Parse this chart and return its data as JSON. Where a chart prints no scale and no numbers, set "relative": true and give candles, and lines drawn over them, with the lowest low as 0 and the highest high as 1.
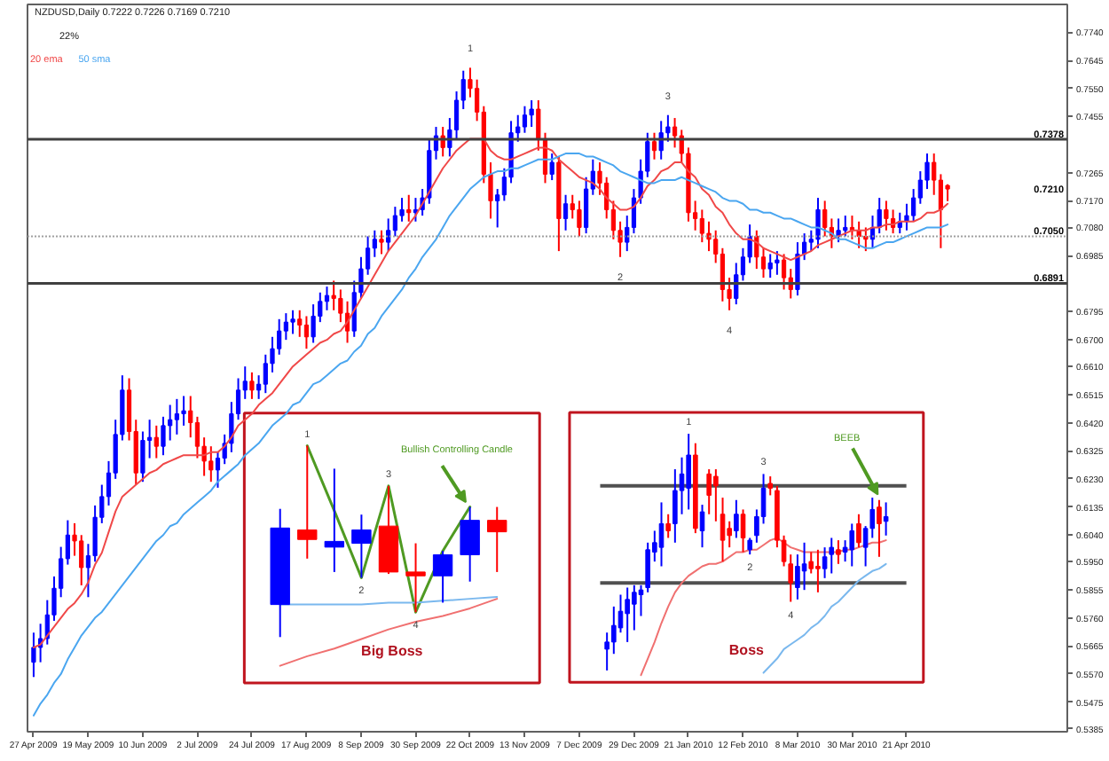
{
  "chart_data": [
    {
      "type": "candlestick",
      "title": "NZDUSD,Daily 0.7222 0.7226 0.7169 0.7210",
      "categories": [
        "27 Apr 2009",
        null,
        null,
        null,
        null,
        null,
        null,
        null,
        "19 May 2009",
        null,
        null,
        null,
        null,
        null,
        null,
        null,
        "10 Jun 2009",
        null,
        null,
        null,
        null,
        null,
        null,
        null,
        "2 Jul 2009",
        null,
        null,
        null,
        null,
        null,
        null,
        null,
        "24 Jul 2009",
        null,
        null,
        null,
        null,
        null,
        null,
        null,
        "17 Aug 2009",
        null,
        null,
        null,
        null,
        null,
        null,
        null,
        "8 Sep 2009",
        null,
        null,
        null,
        null,
        null,
        null,
        null,
        "30 Sep 2009",
        null,
        null,
        null,
        null,
        null,
        null,
        null,
        "22 Oct 2009",
        null,
        null,
        null,
        null,
        null,
        null,
        null,
        "13 Nov 2009",
        null,
        null,
        null,
        null,
        null,
        null,
        null,
        "7 Dec 2009",
        null,
        null,
        null,
        null,
        null,
        null,
        null,
        "29 Dec 2009",
        null,
        null,
        null,
        null,
        null,
        null,
        null,
        "21 Jan 2010",
        null,
        null,
        null,
        null,
        null,
        null,
        null,
        "12 Feb 2010",
        null,
        null,
        null,
        null,
        null,
        null,
        null,
        "8 Mar 2010",
        null,
        null,
        null,
        null,
        null,
        null,
        null,
        "30 Mar 2010",
        null,
        null,
        null,
        null,
        null,
        null,
        null,
        "21 Apr 2010",
        null,
        null,
        null,
        null,
        null,
        null
      ],
      "ohlc": [
        [
          0.561,
          0.571,
          0.556,
          0.566
        ],
        [
          0.566,
          0.574,
          0.561,
          0.569
        ],
        [
          0.569,
          0.582,
          0.567,
          0.577
        ],
        [
          0.577,
          0.59,
          0.575,
          0.586
        ],
        [
          0.586,
          0.6,
          0.583,
          0.596
        ],
        [
          0.596,
          0.609,
          0.594,
          0.604
        ],
        [
          0.604,
          0.608,
          0.597,
          0.602
        ],
        [
          0.602,
          0.604,
          0.587,
          0.593
        ],
        [
          0.593,
          0.601,
          0.583,
          0.597
        ],
        [
          0.597,
          0.614,
          0.595,
          0.61
        ],
        [
          0.61,
          0.621,
          0.608,
          0.617
        ],
        [
          0.617,
          0.629,
          0.614,
          0.625
        ],
        [
          0.625,
          0.643,
          0.623,
          0.638
        ],
        [
          0.638,
          0.658,
          0.636,
          0.653
        ],
        [
          0.653,
          0.657,
          0.636,
          0.639
        ],
        [
          0.639,
          0.643,
          0.621,
          0.625
        ],
        [
          0.625,
          0.639,
          0.622,
          0.636
        ],
        [
          0.636,
          0.643,
          0.63,
          0.637
        ],
        [
          0.637,
          0.641,
          0.63,
          0.634
        ],
        [
          0.634,
          0.644,
          0.631,
          0.641
        ],
        [
          0.641,
          0.648,
          0.636,
          0.643
        ],
        [
          0.643,
          0.65,
          0.638,
          0.645
        ],
        [
          0.645,
          0.651,
          0.641,
          0.646
        ],
        [
          0.646,
          0.651,
          0.637,
          0.642
        ],
        [
          0.642,
          0.644,
          0.63,
          0.634
        ],
        [
          0.634,
          0.637,
          0.624,
          0.629
        ],
        [
          0.629,
          0.634,
          0.622,
          0.626
        ],
        [
          0.626,
          0.632,
          0.62,
          0.63
        ],
        [
          0.63,
          0.638,
          0.628,
          0.635
        ],
        [
          0.635,
          0.649,
          0.632,
          0.645
        ],
        [
          0.645,
          0.657,
          0.643,
          0.653
        ],
        [
          0.653,
          0.661,
          0.65,
          0.656
        ],
        [
          0.656,
          0.659,
          0.65,
          0.653
        ],
        [
          0.653,
          0.658,
          0.65,
          0.655
        ],
        [
          0.655,
          0.665,
          0.652,
          0.662
        ],
        [
          0.662,
          0.671,
          0.659,
          0.667
        ],
        [
          0.667,
          0.677,
          0.665,
          0.673
        ],
        [
          0.673,
          0.679,
          0.67,
          0.676
        ],
        [
          0.676,
          0.68,
          0.672,
          0.677
        ],
        [
          0.677,
          0.68,
          0.671,
          0.675
        ],
        [
          0.675,
          0.678,
          0.667,
          0.671
        ],
        [
          0.671,
          0.682,
          0.669,
          0.678
        ],
        [
          0.678,
          0.686,
          0.676,
          0.683
        ],
        [
          0.683,
          0.688,
          0.68,
          0.685
        ],
        [
          0.685,
          0.69,
          0.68,
          0.684
        ],
        [
          0.684,
          0.687,
          0.676,
          0.679
        ],
        [
          0.679,
          0.683,
          0.669,
          0.673
        ],
        [
          0.673,
          0.69,
          0.671,
          0.686
        ],
        [
          0.686,
          0.698,
          0.684,
          0.694
        ],
        [
          0.694,
          0.705,
          0.692,
          0.701
        ],
        [
          0.701,
          0.707,
          0.698,
          0.704
        ],
        [
          0.704,
          0.707,
          0.699,
          0.703
        ],
        [
          0.703,
          0.711,
          0.7,
          0.707
        ],
        [
          0.707,
          0.715,
          0.705,
          0.712
        ],
        [
          0.712,
          0.718,
          0.71,
          0.714
        ],
        [
          0.714,
          0.719,
          0.71,
          0.713
        ],
        [
          0.713,
          0.718,
          0.71,
          0.714
        ],
        [
          0.714,
          0.721,
          0.712,
          0.718
        ],
        [
          0.718,
          0.738,
          0.716,
          0.734
        ],
        [
          0.734,
          0.742,
          0.731,
          0.739
        ],
        [
          0.739,
          0.742,
          0.732,
          0.735
        ],
        [
          0.735,
          0.745,
          0.732,
          0.741
        ],
        [
          0.741,
          0.754,
          0.738,
          0.751
        ],
        [
          0.751,
          0.761,
          0.748,
          0.758
        ],
        [
          0.758,
          0.762,
          0.752,
          0.755
        ],
        [
          0.755,
          0.758,
          0.744,
          0.747
        ],
        [
          0.747,
          0.749,
          0.723,
          0.726
        ],
        [
          0.726,
          0.73,
          0.711,
          0.717
        ],
        [
          0.717,
          0.721,
          0.708,
          0.719
        ],
        [
          0.719,
          0.728,
          0.717,
          0.725
        ],
        [
          0.725,
          0.744,
          0.723,
          0.74
        ],
        [
          0.74,
          0.746,
          0.737,
          0.742
        ],
        [
          0.742,
          0.749,
          0.74,
          0.746
        ],
        [
          0.746,
          0.751,
          0.742,
          0.748
        ],
        [
          0.748,
          0.751,
          0.734,
          0.738
        ],
        [
          0.738,
          0.74,
          0.723,
          0.726
        ],
        [
          0.726,
          0.733,
          0.724,
          0.73
        ],
        [
          0.73,
          0.732,
          0.7,
          0.711
        ],
        [
          0.711,
          0.719,
          0.707,
          0.716
        ],
        [
          0.716,
          0.719,
          0.711,
          0.714
        ],
        [
          0.714,
          0.717,
          0.705,
          0.708
        ],
        [
          0.708,
          0.725,
          0.706,
          0.721
        ],
        [
          0.721,
          0.731,
          0.719,
          0.727
        ],
        [
          0.727,
          0.73,
          0.719,
          0.723
        ],
        [
          0.723,
          0.725,
          0.711,
          0.714
        ],
        [
          0.714,
          0.717,
          0.704,
          0.707
        ],
        [
          0.707,
          0.71,
          0.698,
          0.703
        ],
        [
          0.703,
          0.712,
          0.7,
          0.708
        ],
        [
          0.708,
          0.721,
          0.706,
          0.718
        ],
        [
          0.718,
          0.731,
          0.716,
          0.727
        ],
        [
          0.727,
          0.74,
          0.725,
          0.737
        ],
        [
          0.737,
          0.74,
          0.731,
          0.734
        ],
        [
          0.734,
          0.744,
          0.731,
          0.74
        ],
        [
          0.74,
          0.746,
          0.737,
          0.742
        ],
        [
          0.742,
          0.745,
          0.735,
          0.739
        ],
        [
          0.739,
          0.741,
          0.73,
          0.733
        ],
        [
          0.733,
          0.735,
          0.71,
          0.713
        ],
        [
          0.713,
          0.717,
          0.707,
          0.711
        ],
        [
          0.711,
          0.714,
          0.703,
          0.706
        ],
        [
          0.706,
          0.71,
          0.7,
          0.704
        ],
        [
          0.704,
          0.707,
          0.696,
          0.699
        ],
        [
          0.699,
          0.701,
          0.683,
          0.687
        ],
        [
          0.687,
          0.691,
          0.68,
          0.684
        ],
        [
          0.684,
          0.696,
          0.682,
          0.692
        ],
        [
          0.692,
          0.701,
          0.69,
          0.698
        ],
        [
          0.698,
          0.709,
          0.696,
          0.705
        ],
        [
          0.705,
          0.707,
          0.694,
          0.698
        ],
        [
          0.698,
          0.701,
          0.691,
          0.694
        ],
        [
          0.694,
          0.699,
          0.691,
          0.696
        ],
        [
          0.696,
          0.7,
          0.692,
          0.697
        ],
        [
          0.697,
          0.699,
          0.687,
          0.691
        ],
        [
          0.691,
          0.694,
          0.684,
          0.687
        ],
        [
          0.687,
          0.703,
          0.685,
          0.699
        ],
        [
          0.699,
          0.706,
          0.697,
          0.703
        ],
        [
          0.703,
          0.707,
          0.7,
          0.704
        ],
        [
          0.704,
          0.718,
          0.701,
          0.714
        ],
        [
          0.714,
          0.717,
          0.705,
          0.708
        ],
        [
          0.708,
          0.711,
          0.701,
          0.705
        ],
        [
          0.705,
          0.711,
          0.703,
          0.707
        ],
        [
          0.707,
          0.712,
          0.705,
          0.708
        ],
        [
          0.708,
          0.712,
          0.704,
          0.707
        ],
        [
          0.707,
          0.71,
          0.701,
          0.705
        ],
        [
          0.705,
          0.708,
          0.7,
          0.704
        ],
        [
          0.704,
          0.712,
          0.701,
          0.708
        ],
        [
          0.708,
          0.718,
          0.706,
          0.714
        ],
        [
          0.714,
          0.717,
          0.707,
          0.711
        ],
        [
          0.711,
          0.714,
          0.706,
          0.708
        ],
        [
          0.708,
          0.713,
          0.706,
          0.71
        ],
        [
          0.71,
          0.716,
          0.707,
          0.712
        ],
        [
          0.712,
          0.721,
          0.71,
          0.718
        ],
        [
          0.718,
          0.727,
          0.716,
          0.724
        ],
        [
          0.724,
          0.733,
          0.721,
          0.73
        ],
        [
          0.73,
          0.733,
          0.719,
          0.724
        ],
        [
          0.724,
          0.726,
          0.701,
          0.714
        ],
        [
          0.7222,
          0.7226,
          0.7169,
          0.721
        ]
      ],
      "colors": [
        "#0000ff",
        "#0000ff",
        "#0000ff",
        "#0000ff",
        "#0000ff",
        "#0000ff",
        "#ff0000",
        "#ff0000",
        "#0000ff",
        "#0000ff",
        "#0000ff",
        "#0000ff",
        "#0000ff",
        "#0000ff",
        "#ff0000",
        "#ff0000",
        "#0000ff",
        "#0000ff",
        "#ff0000",
        "#0000ff",
        "#0000ff",
        "#0000ff",
        "#0000ff",
        "#ff0000",
        "#ff0000",
        "#ff0000",
        "#ff0000",
        "#0000ff",
        "#0000ff",
        "#0000ff",
        "#0000ff",
        "#0000ff",
        "#ff0000",
        "#0000ff",
        "#0000ff",
        "#0000ff",
        "#0000ff",
        "#0000ff",
        "#0000ff",
        "#ff0000",
        "#ff0000",
        "#0000ff",
        "#0000ff",
        "#0000ff",
        "#ff0000",
        "#ff0000",
        "#ff0000",
        "#0000ff",
        "#0000ff",
        "#0000ff",
        "#0000ff",
        "#ff0000",
        "#0000ff",
        "#0000ff",
        "#0000ff",
        "#ff0000",
        "#0000ff",
        "#0000ff",
        "#0000ff",
        "#0000ff",
        "#ff0000",
        "#0000ff",
        "#0000ff",
        "#0000ff",
        "#ff0000",
        "#ff0000",
        "#ff0000",
        "#ff0000",
        "#0000ff",
        "#0000ff",
        "#0000ff",
        "#0000ff",
        "#0000ff",
        "#0000ff",
        "#ff0000",
        "#ff0000",
        "#0000ff",
        "#ff0000",
        "#0000ff",
        "#ff0000",
        "#ff0000",
        "#0000ff",
        "#0000ff",
        "#ff0000",
        "#ff0000",
        "#ff0000",
        "#ff0000",
        "#0000ff",
        "#0000ff",
        "#0000ff",
        "#0000ff",
        "#ff0000",
        "#0000ff",
        "#0000ff",
        "#ff0000",
        "#ff0000",
        "#ff0000",
        "#ff0000",
        "#ff0000",
        "#ff0000",
        "#ff0000",
        "#ff0000",
        "#ff0000",
        "#0000ff",
        "#0000ff",
        "#0000ff",
        "#ff0000",
        "#ff0000",
        "#0000ff",
        "#0000ff",
        "#ff0000",
        "#ff0000",
        "#0000ff",
        "#0000ff",
        "#0000ff",
        "#0000ff",
        "#ff0000",
        "#ff0000",
        "#0000ff",
        "#0000ff",
        "#ff0000",
        "#ff0000",
        "#ff0000",
        "#0000ff",
        "#0000ff",
        "#ff0000",
        "#ff0000",
        "#0000ff",
        "#0000ff",
        "#0000ff",
        "#0000ff",
        "#0000ff",
        "#ff0000",
        "#ff0000",
        "#ff0000"
      ],
      "value_labels": [
        null,
        null,
        null,
        null,
        null,
        null,
        null,
        null,
        null,
        null,
        null,
        null,
        null,
        null,
        null,
        null,
        null,
        null,
        null,
        null,
        null,
        null,
        null,
        null,
        null,
        null,
        null,
        null,
        null,
        null,
        null,
        null,
        null,
        null,
        null,
        null,
        null,
        null,
        null,
        null,
        null,
        null,
        null,
        null,
        null,
        null,
        null,
        null,
        null,
        null,
        null,
        null,
        null,
        null,
        null,
        null,
        null,
        null,
        null,
        null,
        null,
        null,
        null,
        null,
        "1",
        null,
        null,
        null,
        null,
        null,
        null,
        null,
        null,
        null,
        null,
        null,
        null,
        null,
        null,
        null,
        null,
        null,
        null,
        null,
        null,
        null,
        "2",
        null,
        null,
        null,
        null,
        null,
        null,
        "3",
        null,
        null,
        null,
        null,
        null,
        null,
        null,
        null,
        "4",
        null,
        null,
        null,
        null,
        null,
        null,
        null,
        null,
        null,
        null,
        null,
        null,
        null,
        null,
        null,
        null,
        null,
        null,
        null,
        null,
        null,
        null,
        null,
        null,
        null,
        null,
        null,
        null,
        null,
        null,
        null,
        null
      ],
      "series": [
        {
          "type": "line",
          "name": "20 ema",
          "color": "#f04848",
          "values": [
            0.566,
            0.567,
            0.57,
            0.573,
            0.576,
            0.579,
            0.581,
            0.584,
            0.588,
            0.594,
            0.598,
            0.605,
            0.612,
            0.617,
            0.619,
            0.621,
            0.623,
            0.625,
            0.626,
            0.628,
            0.629,
            0.63,
            0.631,
            0.631,
            0.631,
            0.631,
            0.632,
            0.632,
            0.634,
            0.637,
            0.641,
            0.643,
            0.645,
            0.648,
            0.65,
            0.652,
            0.655,
            0.658,
            0.661,
            0.663,
            0.665,
            0.667,
            0.669,
            0.67,
            0.672,
            0.673,
            0.676,
            0.68,
            0.684,
            0.688,
            0.692,
            0.696,
            0.7,
            0.703,
            0.706,
            0.709,
            0.712,
            0.716,
            0.72,
            0.724,
            0.728,
            0.731,
            0.734,
            0.736,
            0.738,
            0.738,
            0.738,
            0.734,
            0.732,
            0.731,
            0.731,
            0.732,
            0.733,
            0.734,
            0.735,
            0.735,
            0.734,
            0.731,
            0.729,
            0.727,
            0.725,
            0.724,
            0.723,
            0.721,
            0.718,
            0.716,
            0.714,
            0.714,
            0.715,
            0.718,
            0.722,
            0.724,
            0.727,
            0.728,
            0.73,
            0.73,
            0.727,
            0.725,
            0.721,
            0.719,
            0.715,
            0.713,
            0.709,
            0.706,
            0.704,
            0.704,
            0.703,
            0.701,
            0.7,
            0.699,
            0.698,
            0.697,
            0.698,
            0.699,
            0.7,
            0.702,
            0.703,
            0.704,
            0.705,
            0.706,
            0.707,
            0.707,
            0.707,
            0.708,
            0.708,
            0.709,
            0.709,
            0.71,
            0.71,
            0.71,
            0.711,
            0.713,
            0.713,
            0.714,
            0.716
          ]
        },
        {
          "type": "line",
          "name": "50 sma",
          "color": "#4aa6f0",
          "values": [
            0.543,
            0.547,
            0.55,
            0.554,
            0.557,
            0.562,
            0.566,
            0.57,
            0.573,
            0.576,
            0.578,
            0.581,
            0.584,
            0.587,
            0.59,
            0.593,
            0.596,
            0.599,
            0.602,
            0.604,
            0.607,
            0.608,
            0.611,
            0.613,
            0.615,
            0.617,
            0.619,
            0.622,
            0.624,
            0.626,
            0.628,
            0.631,
            0.633,
            0.635,
            0.638,
            0.641,
            0.643,
            0.645,
            0.648,
            0.649,
            0.652,
            0.655,
            0.656,
            0.658,
            0.66,
            0.662,
            0.663,
            0.666,
            0.668,
            0.672,
            0.674,
            0.678,
            0.681,
            0.684,
            0.687,
            0.691,
            0.694,
            0.698,
            0.701,
            0.704,
            0.708,
            0.712,
            0.715,
            0.718,
            0.721,
            0.723,
            0.725,
            0.726,
            0.727,
            0.727,
            0.728,
            0.728,
            0.729,
            0.73,
            0.731,
            0.731,
            0.731,
            0.732,
            0.733,
            0.733,
            0.733,
            0.732,
            0.732,
            0.731,
            0.73,
            0.729,
            0.727,
            0.726,
            0.725,
            0.724,
            0.723,
            0.723,
            0.724,
            0.724,
            0.724,
            0.725,
            0.724,
            0.723,
            0.722,
            0.721,
            0.72,
            0.718,
            0.717,
            0.717,
            0.716,
            0.714,
            0.714,
            0.713,
            0.713,
            0.712,
            0.711,
            0.711,
            0.71,
            0.709,
            0.708,
            0.708,
            0.707,
            0.706,
            0.704,
            0.704,
            0.703,
            0.702,
            0.701,
            0.701,
            0.702,
            0.703,
            0.703,
            0.704,
            0.705,
            0.706,
            0.707,
            0.708,
            0.708,
            0.708,
            0.709
          ]
        }
      ],
      "ylim": [
        0.5375,
        0.7834
      ],
      "yticks": [
        {
          "value": 0.774,
          "label": "0.7740"
        },
        0.7645,
        {
          "value": 0.755,
          "label": "0.7550"
        },
        0.7455,
        0.7265,
        {
          "value": 0.717,
          "label": "0.7170"
        },
        {
          "value": 0.708,
          "label": "0.7080"
        },
        0.6985,
        0.6795,
        {
          "value": 0.67,
          "label": "0.6700"
        },
        {
          "value": 0.661,
          "label": "0.6610"
        },
        0.6515,
        {
          "value": 0.642,
          "label": "0.6420"
        },
        0.6325,
        {
          "value": 0.623,
          "label": "0.6230"
        },
        0.6135,
        {
          "value": 0.604,
          "label": "0.6040"
        },
        {
          "value": 0.595,
          "label": "0.5950"
        },
        0.5855,
        {
          "value": 0.576,
          "label": "0.5760"
        },
        0.5665,
        {
          "value": 0.557,
          "label": "0.5570"
        },
        0.5475,
        0.5385
      ],
      "ref_lines": [
        {
          "axis": "y",
          "value": 0.7378,
          "color": "#404040"
        },
        {
          "axis": "y",
          "value": 0.705,
          "color": "#a0a0a0",
          "line_style": "dotted"
        },
        {
          "axis": "y",
          "value": 0.6891,
          "color": "#404040"
        }
      ],
      "annotations": [
        "22%",
        "0.7210",
        {
          "text": "0.7378",
          "y": 0.7378
        },
        {
          "text": "0.7050",
          "y": 0.705
        },
        {
          "text": "0.6891",
          "y": 0.6891
        }
      ],
      "legend": "top left"
    },
    {
      "type": "candlestick",
      "title": "Big Boss",
      "relative": true,
      "categories": [
        null,
        null,
        null,
        null,
        null,
        null,
        null,
        null,
        null
      ],
      "ohlc": [
        [
          0.17,
          0.67,
          0.0,
          0.57
        ],
        [
          0.56,
          1.0,
          0.41,
          0.51
        ],
        [
          0.47,
          0.88,
          0.34,
          0.5
        ],
        [
          0.49,
          0.64,
          0.31,
          0.56
        ],
        [
          0.58,
          0.79,
          0.33,
          0.34
        ],
        [
          0.34,
          0.49,
          0.13,
          0.32
        ],
        [
          0.32,
          0.45,
          0.18,
          0.43
        ],
        [
          0.43,
          0.68,
          0.29,
          0.61
        ],
        [
          0.61,
          0.68,
          0.34,
          0.55
        ]
      ],
      "colors": [
        "#0000ff",
        "#ff0000",
        "#0000ff",
        "#0000ff",
        "#ff0000",
        "#ff0000",
        "#0000ff",
        "#0000ff",
        "#ff0000"
      ],
      "value_labels": [
        null,
        "1",
        null,
        "2",
        "3",
        "4",
        null,
        null,
        null
      ],
      "series": [
        {
          "type": "line",
          "color": "#4f9a22",
          "values": [
            null,
            1.0,
            0.66,
            0.31,
            0.79,
            0.13,
            0.45,
            0.68,
            null
          ]
        },
        {
          "type": "line",
          "color": "#7ab8ee",
          "values": [
            0.17,
            0.17,
            0.17,
            0.17,
            0.18,
            0.18,
            0.19,
            0.2,
            0.21
          ]
        },
        {
          "type": "line",
          "color": "#f07070",
          "values": [
            -0.15,
            -0.1,
            -0.06,
            -0.01,
            0.04,
            0.08,
            0.11,
            0.15,
            0.2
          ]
        }
      ],
      "annotations": [
        "Bullish Controlling Candle"
      ]
    },
    {
      "type": "candlestick",
      "title": "Boss",
      "relative": true,
      "categories": [
        null,
        null,
        null,
        null,
        null,
        null,
        null,
        null,
        null,
        null,
        null,
        null,
        null,
        null,
        null,
        null,
        null,
        null,
        null,
        null,
        null,
        null,
        null,
        null,
        null,
        null,
        null,
        null,
        null,
        null,
        null,
        null,
        null,
        null,
        null,
        null,
        null,
        null,
        null,
        null,
        null,
        null
      ],
      "ohlc": [
        [
          0.09,
          0.16,
          0.0,
          0.12
        ],
        [
          0.12,
          0.27,
          0.07,
          0.19
        ],
        [
          0.18,
          0.32,
          0.16,
          0.25
        ],
        [
          0.24,
          0.35,
          0.12,
          0.3
        ],
        [
          0.28,
          0.36,
          0.17,
          0.33
        ],
        [
          0.32,
          0.36,
          0.23,
          0.34
        ],
        [
          0.35,
          0.54,
          0.33,
          0.51
        ],
        [
          0.5,
          0.59,
          0.46,
          0.54
        ],
        [
          0.52,
          0.71,
          0.44,
          0.62
        ],
        [
          0.62,
          0.66,
          0.56,
          0.59
        ],
        [
          0.62,
          0.85,
          0.54,
          0.76
        ],
        [
          0.76,
          0.9,
          0.66,
          0.83
        ],
        [
          0.77,
          1.0,
          0.68,
          0.91
        ],
        [
          0.91,
          0.96,
          0.58,
          0.6
        ],
        [
          0.59,
          0.7,
          0.52,
          0.67
        ],
        [
          0.83,
          0.85,
          0.66,
          0.74
        ],
        [
          0.82,
          0.85,
          0.63,
          0.78
        ],
        [
          0.66,
          0.73,
          0.46,
          0.55
        ],
        [
          0.6,
          0.63,
          0.52,
          0.57
        ],
        [
          0.59,
          0.72,
          0.56,
          0.66
        ],
        [
          0.66,
          0.68,
          0.5,
          0.56
        ],
        [
          0.51,
          0.56,
          0.49,
          0.55
        ],
        [
          0.57,
          0.68,
          0.54,
          0.65
        ],
        [
          0.65,
          0.83,
          0.62,
          0.77
        ],
        [
          0.79,
          0.82,
          0.74,
          0.77
        ],
        [
          0.76,
          0.78,
          0.52,
          0.55
        ],
        [
          0.55,
          0.57,
          0.44,
          0.46
        ],
        [
          0.45,
          0.49,
          0.29,
          0.37
        ],
        [
          0.35,
          0.49,
          0.3,
          0.44
        ],
        [
          0.42,
          0.54,
          0.34,
          0.45
        ],
        [
          0.46,
          0.5,
          0.41,
          0.43
        ],
        [
          0.44,
          0.51,
          0.33,
          0.43
        ],
        [
          0.43,
          0.52,
          0.39,
          0.48
        ],
        [
          0.49,
          0.56,
          0.41,
          0.52
        ],
        [
          0.51,
          0.55,
          0.45,
          0.49
        ],
        [
          0.5,
          0.55,
          0.46,
          0.52
        ],
        [
          0.51,
          0.62,
          0.44,
          0.59
        ],
        [
          0.62,
          0.66,
          0.52,
          0.54
        ],
        [
          0.52,
          0.61,
          0.44,
          0.6
        ],
        [
          0.6,
          0.73,
          0.56,
          0.68
        ],
        [
          0.69,
          0.72,
          0.48,
          0.62
        ],
        [
          0.63,
          0.71,
          0.57,
          0.65
        ]
      ],
      "colors": [
        "#0000ff",
        "#0000ff",
        "#0000ff",
        "#0000ff",
        "#0000ff",
        "#0000ff",
        "#0000ff",
        "#0000ff",
        "#0000ff",
        "#ff0000",
        "#0000ff",
        "#0000ff",
        "#0000ff",
        "#ff0000",
        "#0000ff",
        "#ff0000",
        "#ff0000",
        "#ff0000",
        "#ff0000",
        "#0000ff",
        "#ff0000",
        "#0000ff",
        "#0000ff",
        "#0000ff",
        "#ff0000",
        "#ff0000",
        "#ff0000",
        "#ff0000",
        "#0000ff",
        "#0000ff",
        "#ff0000",
        "#ff0000",
        "#0000ff",
        "#0000ff",
        "#ff0000",
        "#0000ff",
        "#0000ff",
        "#ff0000",
        "#0000ff",
        "#0000ff",
        "#ff0000",
        "#0000ff"
      ],
      "value_labels": [
        null,
        null,
        null,
        null,
        null,
        null,
        null,
        null,
        null,
        null,
        null,
        null,
        "1",
        null,
        null,
        null,
        null,
        null,
        null,
        null,
        null,
        "2",
        null,
        "3",
        null,
        null,
        null,
        "4",
        null,
        null,
        null,
        null,
        null,
        null,
        null,
        null,
        null,
        null,
        null,
        null,
        null,
        null
      ],
      "series": [
        {
          "type": "line",
          "color": "#f07070",
          "values": [
            null,
            null,
            null,
            null,
            null,
            -0.02,
            0.05,
            0.12,
            0.2,
            0.27,
            0.33,
            0.37,
            0.4,
            0.42,
            0.44,
            0.45,
            0.45,
            0.46,
            0.48,
            0.5,
            0.5,
            0.51,
            0.51,
            0.53,
            0.55,
            0.56,
            0.54,
            0.52,
            0.51,
            0.5,
            0.5,
            0.5,
            0.5,
            0.5,
            0.5,
            0.51,
            0.51,
            0.52,
            0.53,
            0.54,
            0.54,
            0.55
          ]
        },
        {
          "type": "line",
          "color": "#7ab8ee",
          "values": [
            null,
            null,
            null,
            null,
            null,
            null,
            null,
            null,
            null,
            null,
            null,
            null,
            null,
            null,
            null,
            null,
            null,
            null,
            null,
            null,
            null,
            null,
            null,
            -0.01,
            0.02,
            0.05,
            0.09,
            0.11,
            0.13,
            0.15,
            0.18,
            0.2,
            0.23,
            0.27,
            0.29,
            0.32,
            0.35,
            0.38,
            0.4,
            0.42,
            0.43,
            0.45
          ]
        }
      ],
      "ref_lines": [
        {
          "axis": "y",
          "value": 0.78,
          "color": "#505050"
        },
        {
          "axis": "y",
          "value": 0.37,
          "color": "#505050"
        }
      ],
      "annotations": [
        "BEEB"
      ]
    }
  ]
}
